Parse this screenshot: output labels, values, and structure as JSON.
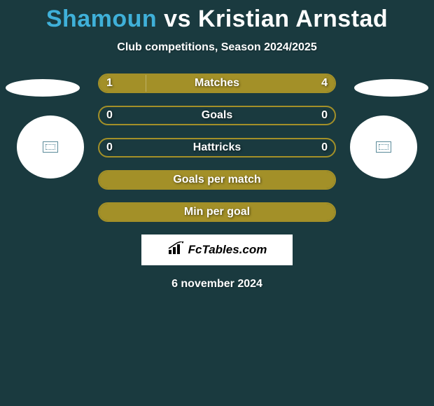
{
  "title": {
    "player1": "Shamoun",
    "vs": "vs",
    "player2": "Kristian Arnstad",
    "player1_color": "#3fb0d9",
    "vs_color": "#ffffff",
    "player2_color": "#ffffff"
  },
  "subtitle": "Club competitions, Season 2024/2025",
  "colors": {
    "background": "#1a3a3f",
    "bar_border": "#a39028",
    "bar_fill": "#a39028",
    "text": "#ffffff"
  },
  "bars": [
    {
      "label": "Matches",
      "left_value": "1",
      "right_value": "4",
      "left_pct": 20,
      "right_pct": 80
    },
    {
      "label": "Goals",
      "left_value": "0",
      "right_value": "0",
      "left_pct": 0,
      "right_pct": 0
    },
    {
      "label": "Hattricks",
      "left_value": "0",
      "right_value": "0",
      "left_pct": 0,
      "right_pct": 0
    },
    {
      "label": "Goals per match",
      "left_value": "",
      "right_value": "",
      "left_pct": 100,
      "right_pct": 0,
      "full_fill": true
    },
    {
      "label": "Min per goal",
      "left_value": "",
      "right_value": "",
      "left_pct": 100,
      "right_pct": 0,
      "full_fill": true
    }
  ],
  "logo": {
    "text": "FcTables.com"
  },
  "date": "6 november 2024"
}
